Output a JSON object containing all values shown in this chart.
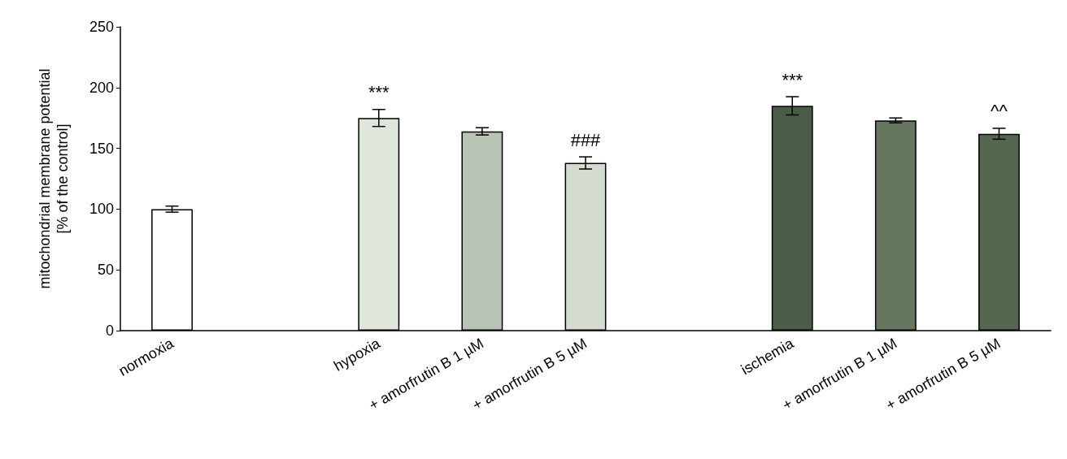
{
  "chart_data": {
    "type": "bar",
    "ylabel": "mitochondrial membrane potential\n[% of the control]",
    "categories": [
      "normoxia",
      null,
      "hypoxia",
      "+ amorfrutin B 1 µM",
      "+ amorfrutin B 5 µM",
      null,
      "ischemia",
      "+ amorfrutin B 1 µM",
      "+ amorfrutin B 5 µM"
    ],
    "values": [
      100,
      null,
      175,
      164,
      138,
      null,
      185,
      173,
      162
    ],
    "errors": [
      2.5,
      null,
      7,
      3,
      5,
      null,
      7.5,
      2,
      4.5
    ],
    "colors": [
      "#ffffff",
      "#ffffff",
      "#dfe7dc",
      "#b9c3b6",
      "#d3dccf",
      "#ffffff",
      "#4a5d47",
      "#66765f",
      "#55684f"
    ],
    "ylim": [
      0,
      250
    ],
    "yticks": [
      0,
      50,
      100,
      150,
      200,
      250
    ],
    "grid": false,
    "value_labels": [
      null,
      null,
      "***",
      null,
      "###",
      null,
      "***",
      null,
      "^^"
    ]
  }
}
